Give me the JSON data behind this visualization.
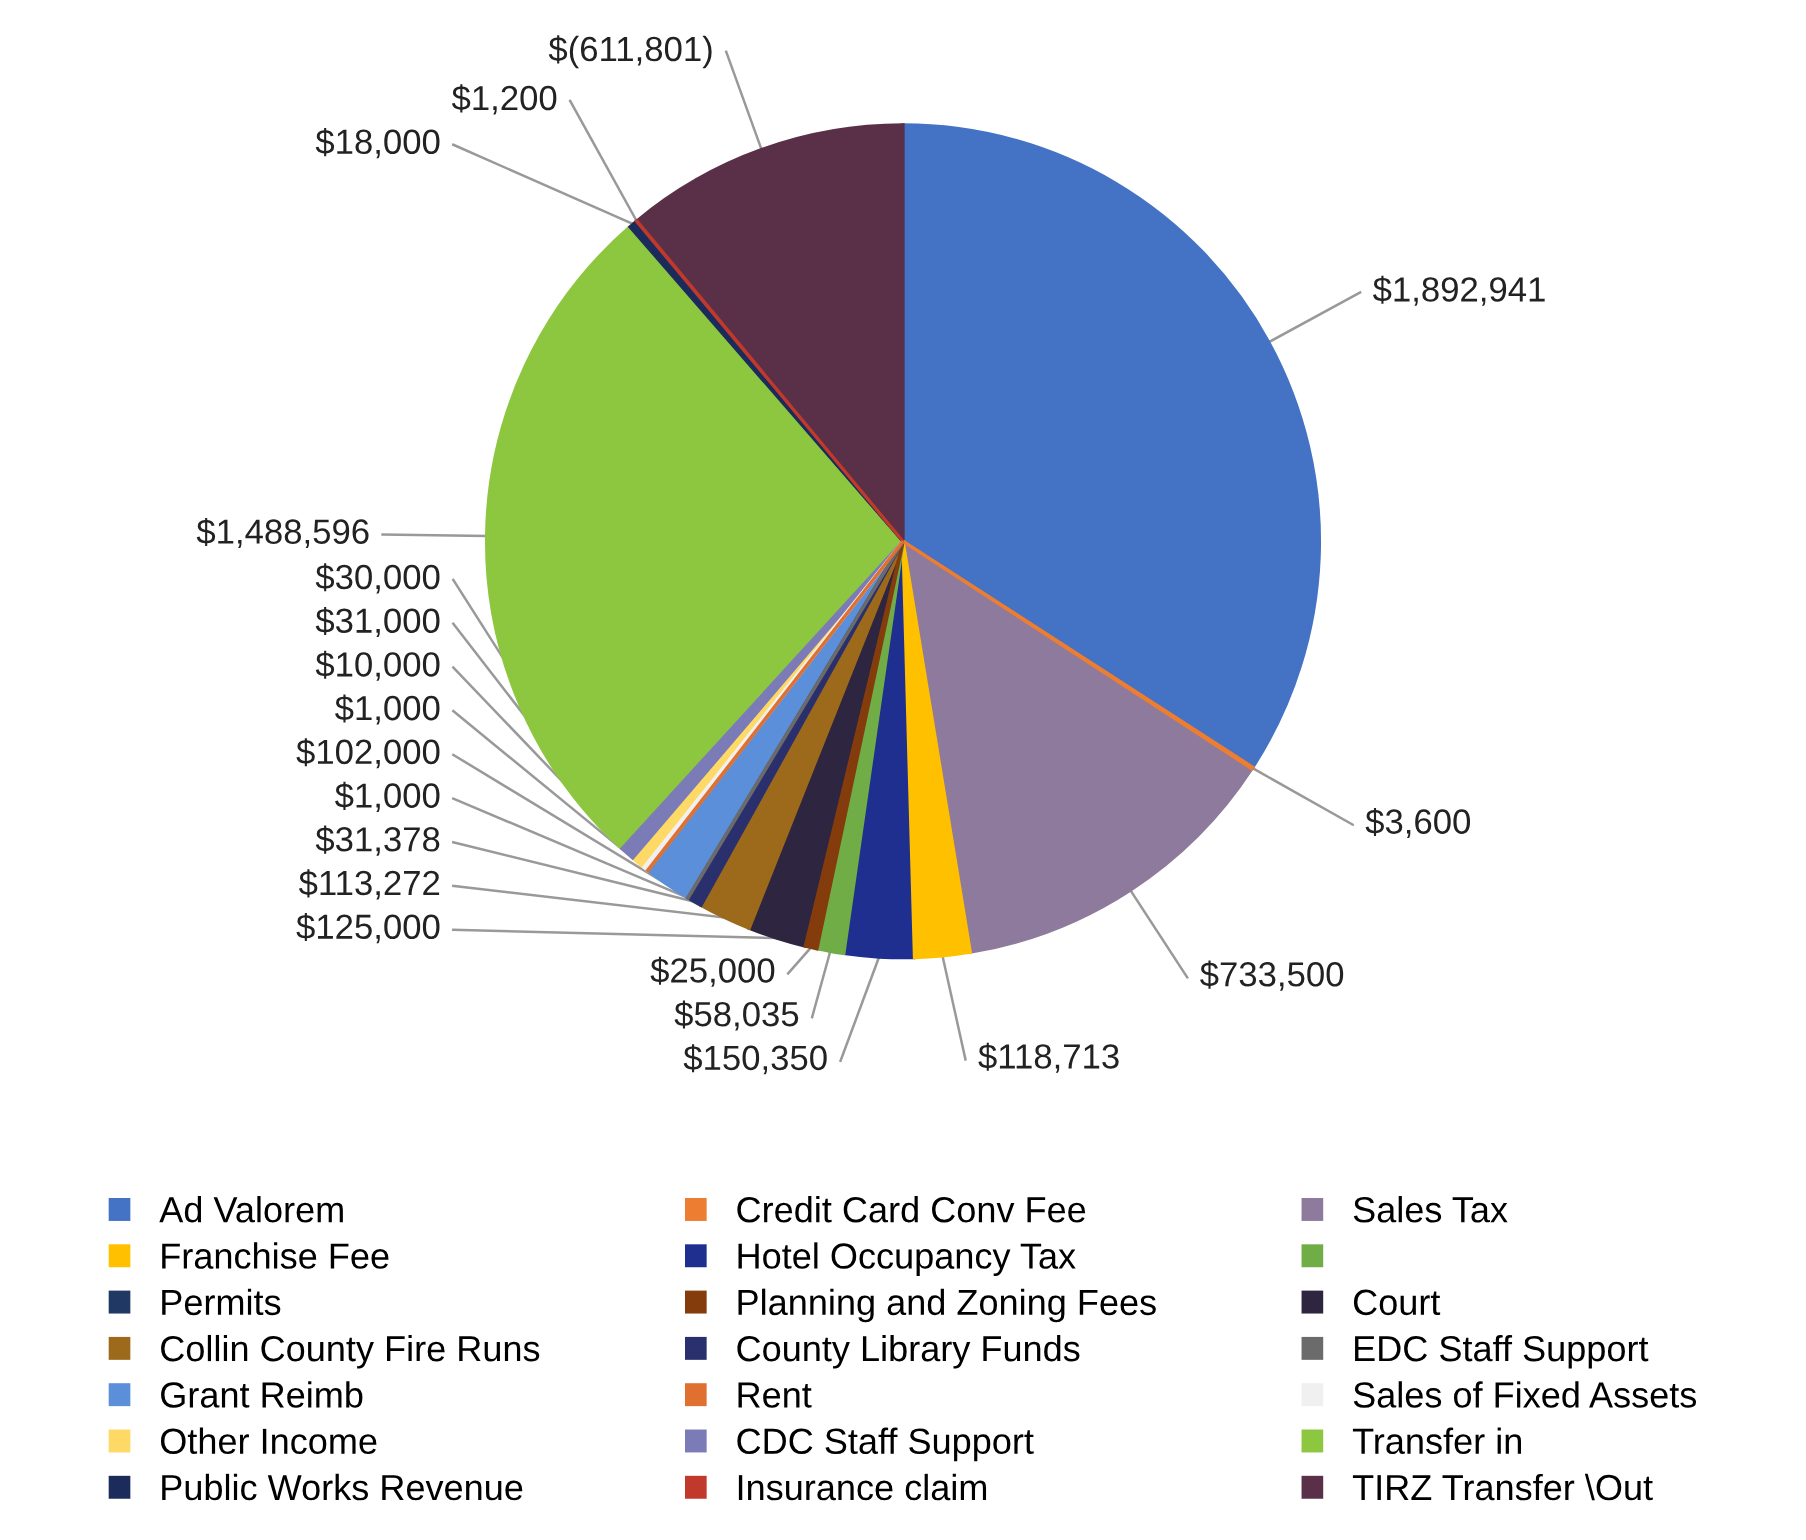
{
  "chart_data": {
    "type": "pie",
    "legend": "bottom",
    "categories": [
      "Ad Valorem",
      "Credit Card Conv Fee",
      "Sales Tax",
      "Franchise Fee",
      "Hotel Occupancy Tax",
      null,
      "Permits",
      "Planning and Zoning Fees",
      "Court",
      "Collin County Fire Runs",
      "County Library Funds",
      "EDC Staff Support",
      "Grant Reimb",
      "Rent",
      "Sales of Fixed Assets",
      "Other Income",
      "CDC Staff Support",
      "Transfer in",
      "Public Works Revenue",
      "Insurance claim",
      "TIRZ Transfer \\Out"
    ],
    "values": [
      1892941,
      3600,
      733500,
      118713,
      150350,
      58035,
      0,
      25000,
      125000,
      113272,
      31378,
      1000,
      102000,
      1000,
      10000,
      31000,
      30000,
      1488596,
      18000,
      1200,
      611801
    ],
    "value_labels": [
      "$1,892,941",
      "$3,600",
      "$733,500",
      "$118,713",
      "$150,350",
      "$58,035",
      null,
      "$25,000",
      "$125,000",
      "$113,272",
      "$31,378",
      "$1,000",
      "$102,000",
      "$1,000",
      "$10,000",
      "$31,000",
      "$30,000",
      "$1,488,596",
      "$18,000",
      "$1,200",
      "$(611,801)"
    ],
    "colors": [
      "#4472c4",
      "#ed7d31",
      "#8e7a9c",
      "#ffc000",
      "#1f2f8f",
      "#70ad47",
      "#1f3864",
      "#843c0c",
      "#2e2640",
      "#9c6a1a",
      "#2a2f6e",
      "#6b6b6b",
      "#5b8fd9",
      "#e07030",
      "#f0f0f0",
      "#ffd966",
      "#7b7bb8",
      "#8dc63f",
      "#1a2b5c",
      "#c0392b",
      "#5a3048"
    ]
  }
}
